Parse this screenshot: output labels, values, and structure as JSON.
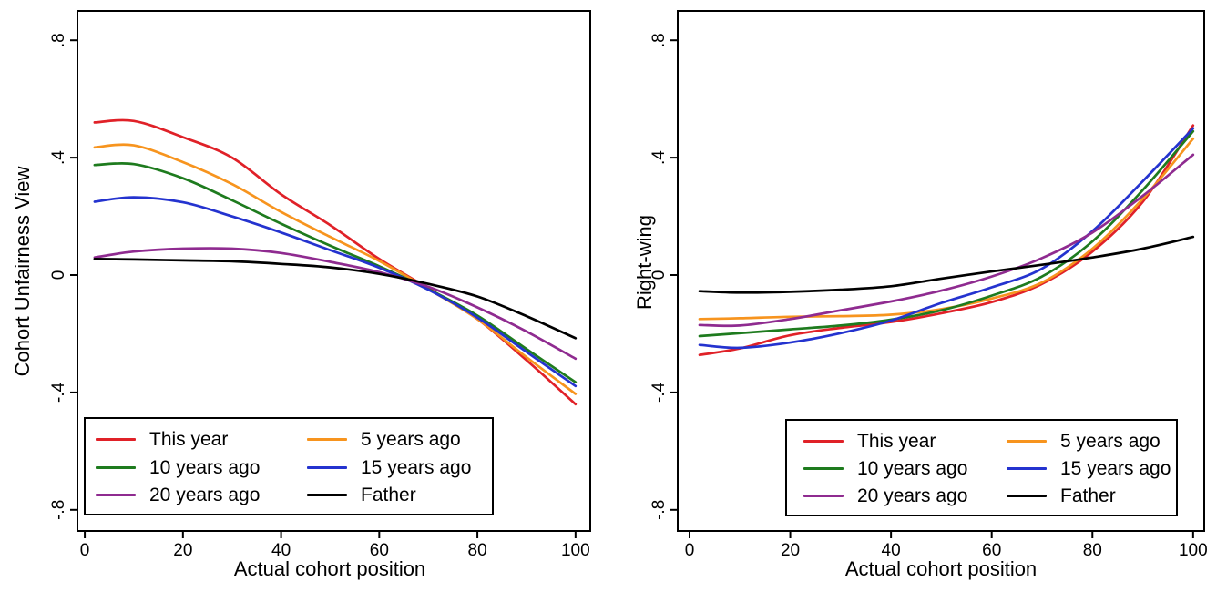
{
  "figure": {
    "background": "#ffffff",
    "axis_color": "#000000"
  },
  "chart_data": [
    {
      "type": "line",
      "panel": "left",
      "title": "",
      "xlabel": "Actual cohort position",
      "ylabel": "Cohort Unfairness View",
      "xlim": [
        -1.5,
        103
      ],
      "ylim": [
        -0.872,
        0.9
      ],
      "grid": false,
      "legend_position": "inside-bottom-left",
      "x_ticks": {
        "values": [
          0,
          20,
          40,
          60,
          80,
          100
        ],
        "labels": [
          "0",
          "20",
          "40",
          "60",
          "80",
          "100"
        ]
      },
      "y_ticks": {
        "values": [
          0.8,
          0.4,
          0,
          -0.4,
          -0.8
        ],
        "labels": [
          ".8",
          ".4",
          "0",
          "-.4",
          "-.8"
        ]
      },
      "x": [
        2,
        10,
        20,
        30,
        40,
        50,
        60,
        70,
        80,
        90,
        100
      ],
      "series": [
        {
          "key": "this_year",
          "name": "This year",
          "color": "#e02128",
          "values": [
            0.52,
            0.525,
            0.47,
            0.4,
            0.275,
            0.17,
            0.055,
            -0.045,
            -0.15,
            -0.29,
            -0.44
          ]
        },
        {
          "key": "five_years",
          "name": "5 years ago",
          "color": "#f7941e",
          "values": [
            0.435,
            0.442,
            0.385,
            0.31,
            0.215,
            0.13,
            0.048,
            -0.048,
            -0.15,
            -0.28,
            -0.405
          ]
        },
        {
          "key": "ten_years",
          "name": "10 years ago",
          "color": "#1e7b1e",
          "values": [
            0.375,
            0.378,
            0.33,
            0.255,
            0.175,
            0.1,
            0.03,
            -0.048,
            -0.138,
            -0.252,
            -0.365
          ]
        },
        {
          "key": "fifteen_years",
          "name": "15 years ago",
          "color": "#2433cf",
          "values": [
            0.25,
            0.265,
            0.248,
            0.2,
            0.145,
            0.085,
            0.025,
            -0.05,
            -0.145,
            -0.262,
            -0.378
          ]
        },
        {
          "key": "twenty_years",
          "name": "20 years ago",
          "color": "#8f2b90",
          "values": [
            0.06,
            0.08,
            0.09,
            0.09,
            0.075,
            0.045,
            0.01,
            -0.04,
            -0.11,
            -0.192,
            -0.285
          ]
        },
        {
          "key": "father",
          "name": "Father",
          "color": "#000000",
          "values": [
            0.055,
            0.053,
            0.05,
            0.047,
            0.038,
            0.026,
            0.004,
            -0.03,
            -0.073,
            -0.14,
            -0.215
          ]
        }
      ]
    },
    {
      "type": "line",
      "panel": "right",
      "title": "",
      "xlabel": "Actual cohort position",
      "ylabel": "Right-wing",
      "xlim": [
        -2.35,
        102.2
      ],
      "ylim": [
        -0.872,
        0.9
      ],
      "grid": false,
      "legend_position": "inside-bottom-right",
      "x_ticks": {
        "values": [
          0,
          20,
          40,
          60,
          80,
          100
        ],
        "labels": [
          "0",
          "20",
          "40",
          "60",
          "80",
          "100"
        ]
      },
      "y_ticks": {
        "values": [
          0.8,
          0.4,
          0,
          -0.4,
          -0.8
        ],
        "labels": [
          ".8",
          ".4",
          "0",
          "-.4",
          "-.8"
        ]
      },
      "x": [
        2,
        10,
        20,
        30,
        40,
        50,
        60,
        70,
        80,
        90,
        100
      ],
      "series": [
        {
          "key": "this_year",
          "name": "This year",
          "color": "#e02128",
          "values": [
            -0.272,
            -0.25,
            -0.205,
            -0.18,
            -0.16,
            -0.13,
            -0.092,
            -0.03,
            0.08,
            0.25,
            0.51
          ]
        },
        {
          "key": "five_years",
          "name": "5 years ago",
          "color": "#f7941e",
          "values": [
            -0.15,
            -0.147,
            -0.142,
            -0.14,
            -0.135,
            -0.116,
            -0.08,
            -0.025,
            0.09,
            0.26,
            0.465
          ]
        },
        {
          "key": "ten_years",
          "name": "10 years ago",
          "color": "#1e7b1e",
          "values": [
            -0.208,
            -0.198,
            -0.185,
            -0.172,
            -0.152,
            -0.12,
            -0.07,
            -0.005,
            0.115,
            0.29,
            0.49
          ]
        },
        {
          "key": "fifteen_years",
          "name": "15 years ago",
          "color": "#2433cf",
          "values": [
            -0.238,
            -0.248,
            -0.23,
            -0.198,
            -0.155,
            -0.095,
            -0.042,
            0.022,
            0.15,
            0.32,
            0.5
          ]
        },
        {
          "key": "twenty_years",
          "name": "20 years ago",
          "color": "#8f2b90",
          "values": [
            -0.17,
            -0.172,
            -0.15,
            -0.12,
            -0.09,
            -0.053,
            -0.005,
            0.058,
            0.145,
            0.27,
            0.41
          ]
        },
        {
          "key": "father",
          "name": "Father",
          "color": "#000000",
          "values": [
            -0.055,
            -0.06,
            -0.057,
            -0.05,
            -0.038,
            -0.012,
            0.012,
            0.035,
            0.06,
            0.09,
            0.13
          ]
        }
      ]
    }
  ],
  "legend": {
    "col1": [
      {
        "label": "This year",
        "series": "this_year"
      },
      {
        "label": "10 years ago",
        "series": "ten_years"
      },
      {
        "label": "20 years ago",
        "series": "twenty_years"
      }
    ],
    "col2": [
      {
        "label": "5 years ago",
        "series": "five_years"
      },
      {
        "label": "15 years ago",
        "series": "fifteen_years"
      },
      {
        "label": "Father",
        "series": "father"
      }
    ]
  }
}
